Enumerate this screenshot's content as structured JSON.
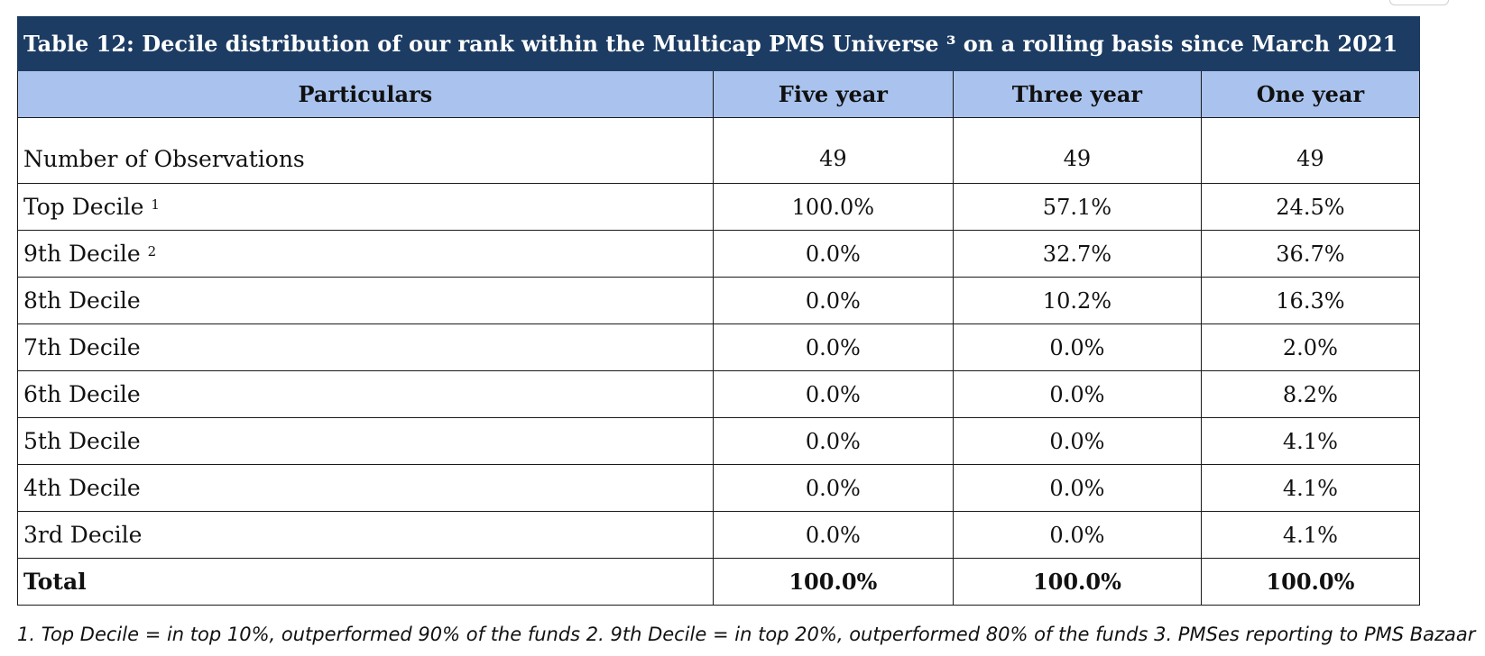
{
  "table": {
    "title": "Table 12: Decile distribution of our rank within the Multicap PMS Universe ³ on a rolling basis since March 2021",
    "columns": [
      "Particulars",
      "Five year",
      "Three year",
      "One year"
    ],
    "rows": [
      {
        "label": "Number of Observations",
        "sup": "",
        "values": [
          "49",
          "49",
          "49"
        ]
      },
      {
        "label": "Top Decile",
        "sup": "1",
        "values": [
          "100.0%",
          "57.1%",
          "24.5%"
        ]
      },
      {
        "label": "9th Decile",
        "sup": "2",
        "values": [
          "0.0%",
          "32.7%",
          "36.7%"
        ]
      },
      {
        "label": "8th Decile",
        "sup": "",
        "values": [
          "0.0%",
          "10.2%",
          "16.3%"
        ]
      },
      {
        "label": "7th Decile",
        "sup": "",
        "values": [
          "0.0%",
          "0.0%",
          "2.0%"
        ]
      },
      {
        "label": "6th Decile",
        "sup": "",
        "values": [
          "0.0%",
          "0.0%",
          "8.2%"
        ]
      },
      {
        "label": "5th Decile",
        "sup": "",
        "values": [
          "0.0%",
          "0.0%",
          "4.1%"
        ]
      },
      {
        "label": "4th Decile",
        "sup": "",
        "values": [
          "0.0%",
          "0.0%",
          "4.1%"
        ]
      },
      {
        "label": "3rd Decile",
        "sup": "",
        "values": [
          "0.0%",
          "0.0%",
          "4.1%"
        ]
      }
    ],
    "total": {
      "label": "Total",
      "values": [
        "100.0%",
        "100.0%",
        "100.0%"
      ]
    }
  },
  "footnote": "1. Top Decile = in top 10%,  outperformed 90% of the funds 2. 9th Decile = in top 20%, outperformed 80% of the funds 3. PMSes reporting to PMS Bazaar"
}
